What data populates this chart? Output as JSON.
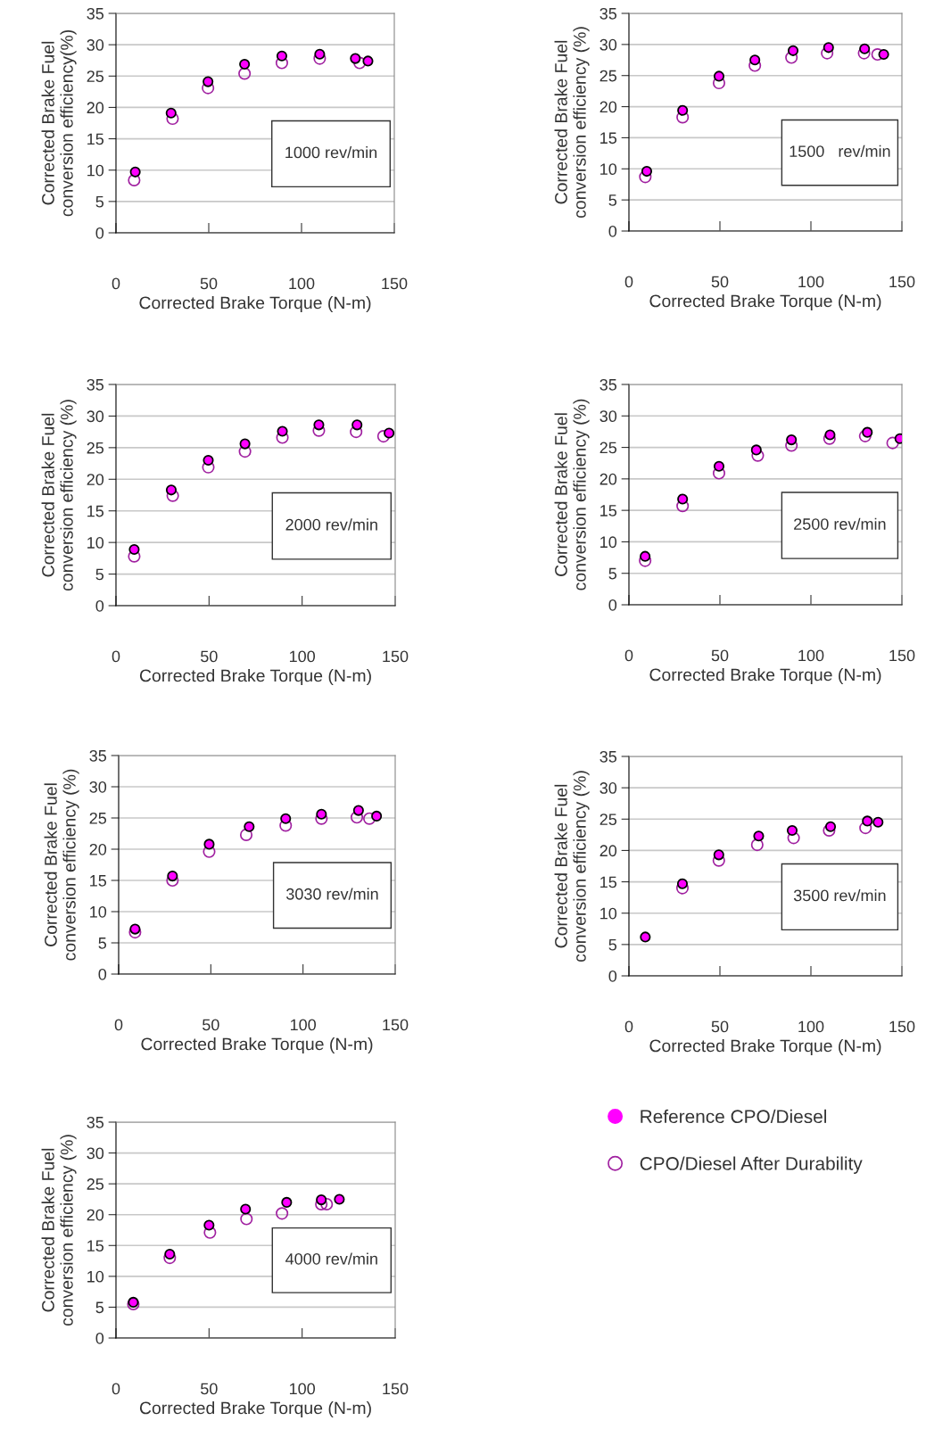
{
  "chart_data": [
    {
      "type": "scatter",
      "xlabel": "Corrected Brake Torque (N-m)",
      "ylabel": "Corrected Brake Fuel\nconversion efficiency(%)",
      "annotations": [
        "1000 rev/min"
      ],
      "xlim": [
        0,
        150
      ],
      "xticks": [
        0,
        50,
        100,
        150
      ],
      "ylim": [
        0,
        35
      ],
      "yticks": [
        0,
        5,
        10,
        15,
        20,
        25,
        30,
        35
      ],
      "grid": "y",
      "marker": "circle",
      "legend": false,
      "series": [
        {
          "color": "#ff00ff",
          "x": [
            10.4,
            29.7,
            49.6,
            69.3,
            89.4,
            109.8,
            129,
            135.8
          ],
          "values": [
            9.7,
            19.1,
            24.1,
            26.9,
            28.2,
            28.5,
            27.8,
            27.4
          ]
        },
        {
          "color": "#a020a0",
          "x": [
            9.8,
            30.5,
            49.6,
            69.3,
            89.4,
            109.8,
            131.3
          ],
          "values": [
            8.4,
            18.2,
            23.1,
            25.4,
            27.1,
            27.8,
            27.1
          ]
        }
      ]
    },
    {
      "type": "scatter",
      "xlabel": "Corrected Brake Torque (N-m)",
      "ylabel": "Corrected Brake Fuel\nconversion efficiency (%)",
      "annotations": [
        "1500   rev/min"
      ],
      "xlim": [
        0,
        150
      ],
      "xticks": [
        0,
        50,
        100,
        150
      ],
      "ylim": [
        0,
        35
      ],
      "yticks": [
        0,
        5,
        10,
        15,
        20,
        25,
        30,
        35
      ],
      "grid": "y",
      "marker": "circle",
      "legend": false,
      "series": [
        {
          "color": "#ff00ff",
          "x": [
            9.8,
            29.5,
            49.5,
            69.2,
            90.2,
            109.7,
            129.5,
            140
          ],
          "values": [
            9.6,
            19.4,
            24.9,
            27.5,
            29.0,
            29.5,
            29.3,
            28.4
          ]
        },
        {
          "color": "#a020a0",
          "x": [
            9.0,
            29.5,
            49.5,
            69.2,
            89.3,
            108.9,
            129.2,
            136.6
          ],
          "values": [
            8.7,
            18.3,
            23.8,
            26.6,
            27.9,
            28.6,
            28.6,
            28.4
          ]
        }
      ]
    },
    {
      "type": "scatter",
      "xlabel": "Corrected Brake Torque (N-m)",
      "ylabel": "Corrected Brake Fuel\nconversion efficiency (%)",
      "annotations": [
        "2000 rev/min"
      ],
      "xlim": [
        0,
        150
      ],
      "xticks": [
        0,
        50,
        100,
        150
      ],
      "ylim": [
        0,
        35
      ],
      "yticks": [
        0,
        5,
        10,
        15,
        20,
        25,
        30,
        35
      ],
      "grid": "y",
      "marker": "circle",
      "legend": false,
      "series": [
        {
          "color": "#ff00ff",
          "x": [
            9.8,
            29.7,
            49.6,
            69.3,
            89.4,
            109,
            129.5,
            146.7
          ],
          "values": [
            8.9,
            18.3,
            23.0,
            25.6,
            27.6,
            28.6,
            28.6,
            27.3
          ]
        },
        {
          "color": "#a020a0",
          "x": [
            9.8,
            30.5,
            49.6,
            69.3,
            89.4,
            109,
            129,
            143.7
          ],
          "values": [
            7.8,
            17.4,
            21.9,
            24.4,
            26.6,
            27.7,
            27.5,
            26.8
          ]
        }
      ]
    },
    {
      "type": "scatter",
      "xlabel": "Corrected Brake Torque (N-m)",
      "ylabel": "Corrected Brake Fuel\nconversion efficiency (%)",
      "annotations": [
        "2500 rev/min"
      ],
      "xlim": [
        0,
        150
      ],
      "xticks": [
        0,
        50,
        100,
        150
      ],
      "ylim": [
        0,
        35
      ],
      "yticks": [
        0,
        5,
        10,
        15,
        20,
        25,
        30,
        35
      ],
      "grid": "y",
      "marker": "circle",
      "legend": false,
      "series": [
        {
          "color": "#ff00ff",
          "x": [
            8.9,
            29.5,
            49.5,
            70,
            89.3,
            110.5,
            131,
            148.9
          ],
          "values": [
            7.7,
            16.8,
            22.0,
            24.6,
            26.2,
            27.0,
            27.4,
            26.4
          ]
        },
        {
          "color": "#a020a0",
          "x": [
            8.9,
            29.5,
            49.5,
            70.8,
            89.3,
            110.2,
            129.8,
            144.9
          ],
          "values": [
            7.0,
            15.7,
            20.9,
            23.7,
            25.3,
            26.4,
            26.8,
            25.7
          ]
        }
      ]
    },
    {
      "type": "scatter",
      "xlabel": "Corrected Brake Torque (N-m)",
      "ylabel": "Corrected Brake Fuel\nconversion efficiency (%)",
      "annotations": [
        "3030 rev/min"
      ],
      "xlim": [
        0,
        150
      ],
      "xticks": [
        0,
        50,
        100,
        150
      ],
      "ylim": [
        0,
        35
      ],
      "yticks": [
        0,
        5,
        10,
        15,
        20,
        25,
        30,
        35
      ],
      "grid": "y",
      "marker": "circle",
      "legend": false,
      "series": [
        {
          "color": "#ff00ff",
          "x": [
            8.9,
            29.2,
            49.1,
            70.8,
            90.6,
            110,
            130.1,
            139.9
          ],
          "values": [
            7.2,
            15.7,
            20.8,
            23.6,
            24.9,
            25.6,
            26.2,
            25.3
          ]
        },
        {
          "color": "#a020a0",
          "x": [
            8.9,
            29.2,
            49.1,
            69.2,
            90.6,
            110,
            129.2,
            136
          ],
          "values": [
            6.7,
            15.0,
            19.6,
            22.3,
            23.8,
            24.9,
            25.1,
            24.9
          ]
        }
      ]
    },
    {
      "type": "scatter",
      "xlabel": "Corrected Brake Torque (N-m)",
      "ylabel": "Corrected Brake Fuel\nconversion efficiency (%)",
      "annotations": [
        "3500 rev/min"
      ],
      "xlim": [
        0,
        150
      ],
      "xticks": [
        0,
        50,
        100,
        150
      ],
      "ylim": [
        0,
        35
      ],
      "yticks": [
        0,
        5,
        10,
        15,
        20,
        25,
        30,
        35
      ],
      "grid": "y",
      "marker": "circle",
      "legend": false,
      "series": [
        {
          "color": "#ff00ff",
          "x": [
            9.0,
            29.4,
            49.4,
            71.3,
            89.7,
            110.8,
            131,
            136.9
          ],
          "values": [
            6.2,
            14.7,
            19.3,
            22.3,
            23.2,
            23.8,
            24.7,
            24.5
          ]
        },
        {
          "color": "#a020a0",
          "x": [
            29.4,
            49.4,
            70.5,
            90.5,
            110,
            130
          ],
          "values": [
            14.0,
            18.4,
            20.9,
            22.0,
            23.2,
            23.6
          ]
        }
      ]
    },
    {
      "type": "scatter",
      "xlabel": "Corrected Brake Torque (N-m)",
      "ylabel": "Corrected Brake Fuel\nconversion efficiency (%)",
      "annotations": [
        "4000 rev/min"
      ],
      "xlim": [
        0,
        150
      ],
      "xticks": [
        0,
        50,
        100,
        150
      ],
      "ylim": [
        0,
        35
      ],
      "yticks": [
        0,
        5,
        10,
        15,
        20,
        25,
        30,
        35
      ],
      "grid": "y",
      "marker": "circle",
      "legend": "right",
      "series": [
        {
          "name": "Reference CPO/Diesel",
          "color": "#ff00ff",
          "x": [
            9.3,
            28.9,
            50,
            69.6,
            91.7,
            110.3,
            120
          ],
          "values": [
            5.8,
            13.6,
            18.3,
            20.9,
            22.0,
            22.4,
            22.5
          ]
        },
        {
          "name": "CPO/Diesel After Durability",
          "color": "#a020a0",
          "x": [
            9.3,
            28.9,
            50.5,
            70.1,
            89.2,
            110.3,
            113.2
          ],
          "values": [
            5.5,
            13.0,
            17.1,
            19.3,
            20.2,
            21.7,
            21.7
          ]
        }
      ]
    }
  ]
}
